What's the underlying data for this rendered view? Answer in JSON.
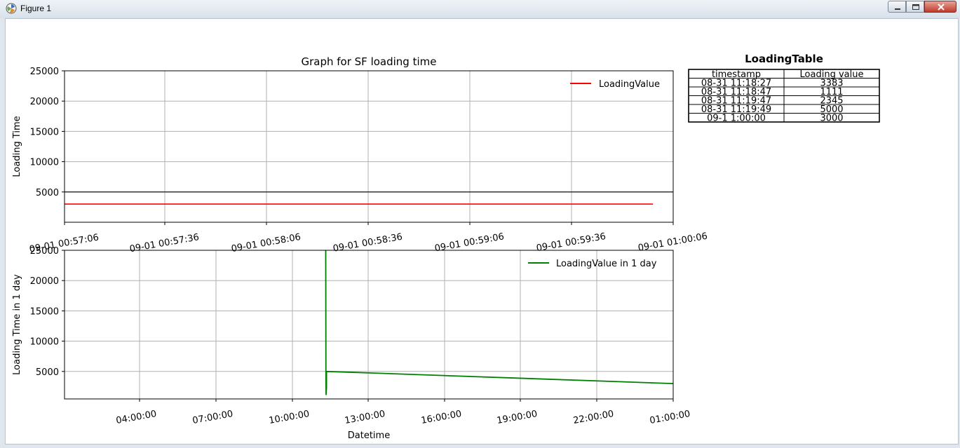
{
  "window": {
    "title": "Figure 1"
  },
  "charts": {
    "top": {
      "title": "Graph for SF loading time",
      "ylabel": "Loading Time",
      "legend": "LoadingValue",
      "yticks": [
        "25000",
        "20000",
        "15000",
        "10000",
        "5000"
      ],
      "xticks": [
        "09-01 00:57:06",
        "09-01 00:57:36",
        "09-01 00:58:06",
        "09-01 00:58:36",
        "09-01 00:59:06",
        "09-01 00:59:36",
        "09-01 01:00:06"
      ]
    },
    "bottom": {
      "xlabel": "Datetime",
      "ylabel": "Loading Time in 1 day",
      "legend": "LoadingValue in 1 day",
      "yticks": [
        "25000",
        "20000",
        "15000",
        "10000",
        "5000"
      ],
      "xticks": [
        "04:00:00",
        "07:00:00",
        "10:00:00",
        "13:00:00",
        "16:00:00",
        "19:00:00",
        "22:00:00",
        "01:00:00"
      ]
    },
    "table": {
      "title": "LoadingTable",
      "headers": [
        "timestamp",
        "Loading value"
      ],
      "rows": [
        [
          "08-31 11:18:27",
          "3383"
        ],
        [
          "08-31 11:18:47",
          "1111"
        ],
        [
          "08-31 11:19:47",
          "2345"
        ],
        [
          "08-31 11:19:49",
          "5000"
        ],
        [
          "09-1 1:00:00",
          "3000"
        ]
      ]
    }
  },
  "chart_data": [
    {
      "type": "line",
      "title": "Graph for SF loading time",
      "xlabel": "",
      "ylabel": "Loading Time",
      "xlim": [
        "09-01 00:57:06",
        "09-01 01:00:06"
      ],
      "ylim": [
        0,
        25000
      ],
      "grid": true,
      "legend_position": "top-right",
      "reference_line": 5000,
      "series": [
        {
          "name": "LoadingValue",
          "color": "#ff0000",
          "x": [
            "09-01 00:57:06",
            "09-01 01:00:00"
          ],
          "y": [
            3000,
            3000
          ]
        }
      ]
    },
    {
      "type": "line",
      "xlabel": "Datetime",
      "ylabel": "Loading Time in 1 day",
      "xlim": [
        "01:00:00",
        "01:00:00 (+1 day)"
      ],
      "ylim": [
        0,
        25000
      ],
      "grid": true,
      "legend_position": "top-right",
      "series": [
        {
          "name": "LoadingValue in 1 day",
          "color": "#008000",
          "x": [
            "11:18:00",
            "11:18:27",
            "11:18:47",
            "11:19:47",
            "11:19:49",
            "01:00:00"
          ],
          "y": [
            25000,
            3383,
            1111,
            2345,
            5000,
            3000
          ]
        }
      ]
    },
    {
      "type": "table",
      "title": "LoadingTable",
      "columns": [
        "timestamp",
        "Loading value"
      ],
      "rows": [
        [
          "08-31 11:18:27",
          3383
        ],
        [
          "08-31 11:18:47",
          1111
        ],
        [
          "08-31 11:19:47",
          2345
        ],
        [
          "08-31 11:19:49",
          5000
        ],
        [
          "09-1 1:00:00",
          3000
        ]
      ]
    }
  ]
}
